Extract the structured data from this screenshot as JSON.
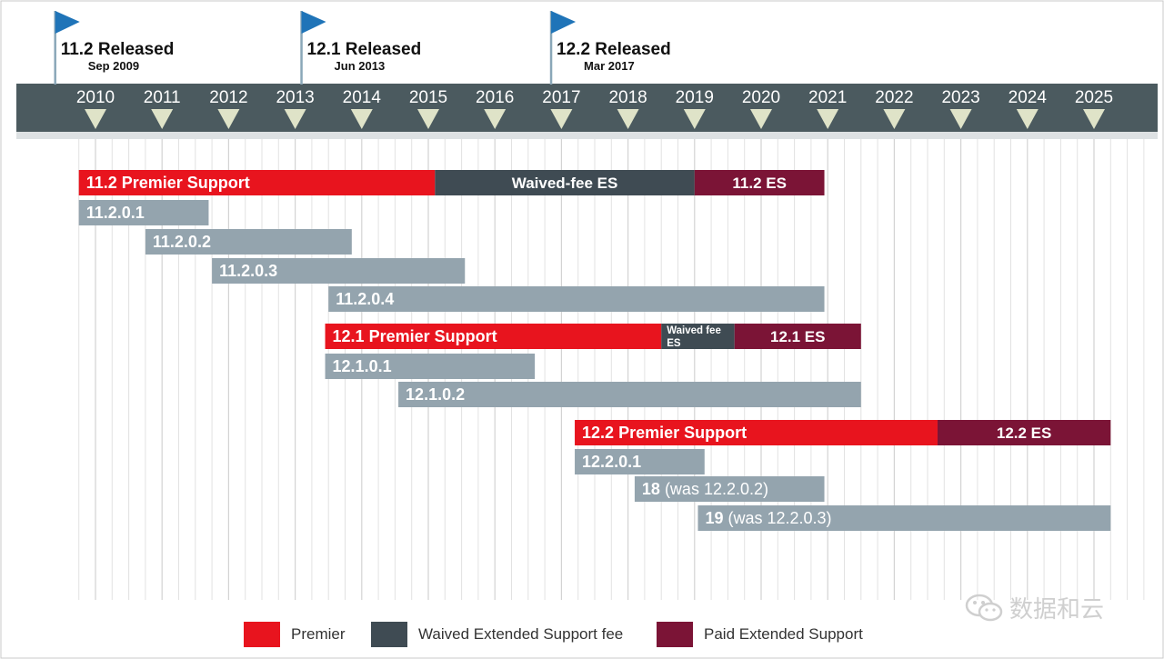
{
  "chart_data": {
    "type": "gantt",
    "title": "",
    "x_range": [
      2009.6,
      2025.6
    ],
    "years": [
      "2010",
      "2011",
      "2012",
      "2013",
      "2014",
      "2015",
      "2016",
      "2017",
      "2018",
      "2019",
      "2020",
      "2021",
      "2022",
      "2023",
      "2024",
      "2025"
    ],
    "releases": [
      {
        "title": "11.2 Released",
        "date": "Sep 2009",
        "x": 2009.75
      },
      {
        "title": "12.1 Released",
        "date": "Jun 2013",
        "x": 2013.45
      },
      {
        "title": "12.2 Released",
        "date": "Mar 2017",
        "x": 2017.2
      }
    ],
    "bars": [
      {
        "label": "11.2 Premier Support",
        "start": 2009.75,
        "end": 2015.1,
        "kind": "premier"
      },
      {
        "label": "Waived-fee ES",
        "start": 2015.1,
        "end": 2019.0,
        "kind": "waived"
      },
      {
        "label": "11.2 ES",
        "start": 2019.0,
        "end": 2020.95,
        "kind": "paid"
      },
      {
        "label": "11.2.0.1",
        "start": 2009.75,
        "end": 2011.7,
        "kind": "patch"
      },
      {
        "label": "11.2.0.2",
        "start": 2010.75,
        "end": 2013.85,
        "kind": "patch"
      },
      {
        "label": "11.2.0.3",
        "start": 2011.75,
        "end": 2015.55,
        "kind": "patch"
      },
      {
        "label": "11.2.0.4",
        "start": 2013.5,
        "end": 2020.95,
        "kind": "patch"
      },
      {
        "label": "12.1 Premier Support",
        "start": 2013.45,
        "end": 2018.5,
        "kind": "premier"
      },
      {
        "label": "Waived fee ES",
        "start": 2018.5,
        "end": 2019.6,
        "kind": "waived"
      },
      {
        "label": "12.1 ES",
        "start": 2019.6,
        "end": 2021.5,
        "kind": "paid"
      },
      {
        "label": "12.1.0.1",
        "start": 2013.45,
        "end": 2016.6,
        "kind": "patch"
      },
      {
        "label": "12.1.0.2",
        "start": 2014.55,
        "end": 2021.5,
        "kind": "patch"
      },
      {
        "label": "12.2 Premier Support",
        "start": 2017.2,
        "end": 2022.65,
        "kind": "premier"
      },
      {
        "label": "12.2 ES",
        "start": 2022.65,
        "end": 2025.25,
        "kind": "paid"
      },
      {
        "label": "12.2.0.1",
        "start": 2017.2,
        "end": 2019.15,
        "kind": "patch"
      },
      {
        "label": "18 (was 12.2.0.2)",
        "start": 2018.1,
        "end": 2020.95,
        "kind": "patch"
      },
      {
        "label": "19 (was 12.2.0.3)",
        "start": 2019.05,
        "end": 2025.25,
        "kind": "patch"
      }
    ]
  },
  "legend": {
    "premier": "Premier",
    "waived": "Waived Extended Support fee",
    "paid": "Paid Extended Support"
  },
  "colors": {
    "premier": "#e8141e",
    "waived": "#3f4b53",
    "paid": "#7b1436",
    "patch": "#94a4ae",
    "timeline": "#4b5a5f",
    "flag": "#1f74b8",
    "triangle": "#dfe3c8"
  },
  "watermark": "数据和云"
}
